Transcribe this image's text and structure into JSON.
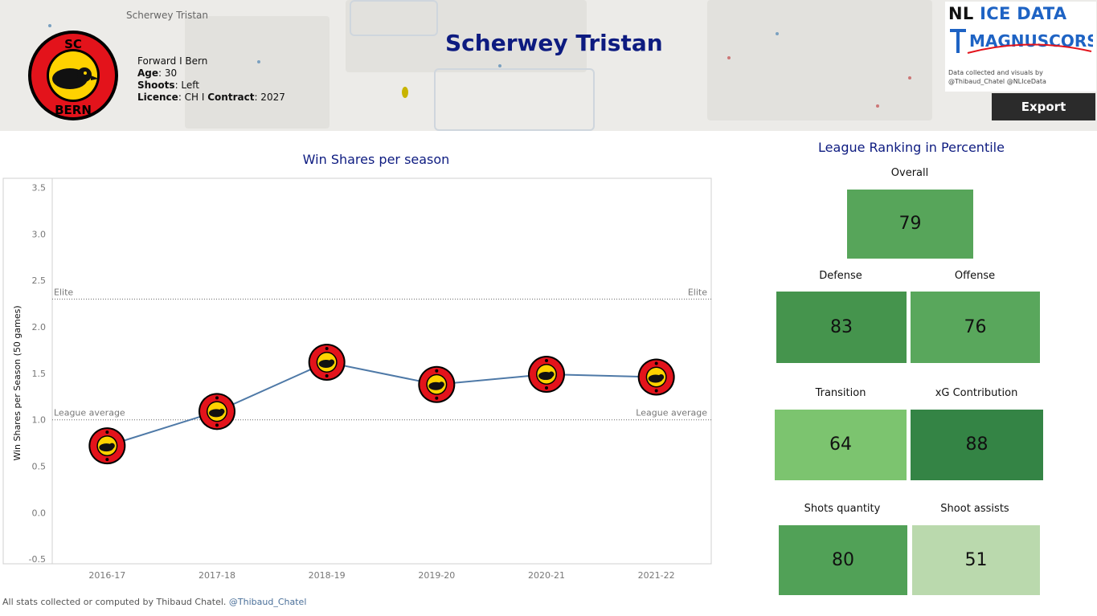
{
  "header": {
    "breadcrumb": "Scherwey Tristan",
    "player_name": "Scherwey Tristan",
    "position_team": "Forward I Bern",
    "age_label": "Age",
    "age_value": ": 30",
    "shoots_label": "Shoots",
    "shoots_value": ": Left",
    "licence_label": "Licence",
    "licence_value": ": CH I ",
    "contract_label": "Contract",
    "contract_value": ": 2027",
    "team_logo_text": "SC BERN",
    "team_colors": {
      "primary": "#e3131b",
      "secondary": "#ffd200",
      "outline": "#000000"
    }
  },
  "brand": {
    "title_part1": "NL ",
    "title_part2": "ICE DATA",
    "subtitle": "MAGNUSCORSI",
    "credit_line1": "Data collected and visuals by",
    "credit_line2": "@Thibaud_Chatel @NLIceData",
    "export_label": "Export"
  },
  "chart_data": {
    "type": "line",
    "title": "Win Shares per season",
    "ylabel": "Win Shares per Season (50 games)",
    "xlabel": "",
    "categories": [
      "2016-17",
      "2017-18",
      "2018-19",
      "2019-20",
      "2020-21",
      "2021-22"
    ],
    "series": [
      {
        "values": [
          0.72,
          1.09,
          1.62,
          1.38,
          1.49,
          1.46
        ],
        "color": "#4e79a7"
      }
    ],
    "ylim": [
      -0.55,
      3.6
    ],
    "yticks": [
      "-0.5",
      "0.0",
      "0.5",
      "1.0",
      "1.5",
      "2.0",
      "2.5",
      "3.0",
      "3.5"
    ],
    "reference_lines": [
      {
        "label": "Elite",
        "value": 2.3
      },
      {
        "label": "League average",
        "value": 1.0
      }
    ],
    "grid": false,
    "marker": "team-logo"
  },
  "ranking": {
    "title": "League Ranking in Percentile",
    "tiles": [
      {
        "label": "Overall",
        "value": "79",
        "color": "#57a55a"
      },
      {
        "label": "Defense",
        "value": "83",
        "color": "#45944d"
      },
      {
        "label": "Offense",
        "value": "76",
        "color": "#59a75c"
      },
      {
        "label": "Transition",
        "value": "64",
        "color": "#7cc46f"
      },
      {
        "label": "xG Contribution",
        "value": "88",
        "color": "#348445"
      },
      {
        "label": "Shots quantity",
        "value": "80",
        "color": "#51a157"
      },
      {
        "label": "Shoot assists",
        "value": "51",
        "color": "#bad9ad"
      }
    ]
  },
  "footer": {
    "text": "All stats collected or computed by Thibaud Chatel. ",
    "handle": "@Thibaud_Chatel"
  }
}
